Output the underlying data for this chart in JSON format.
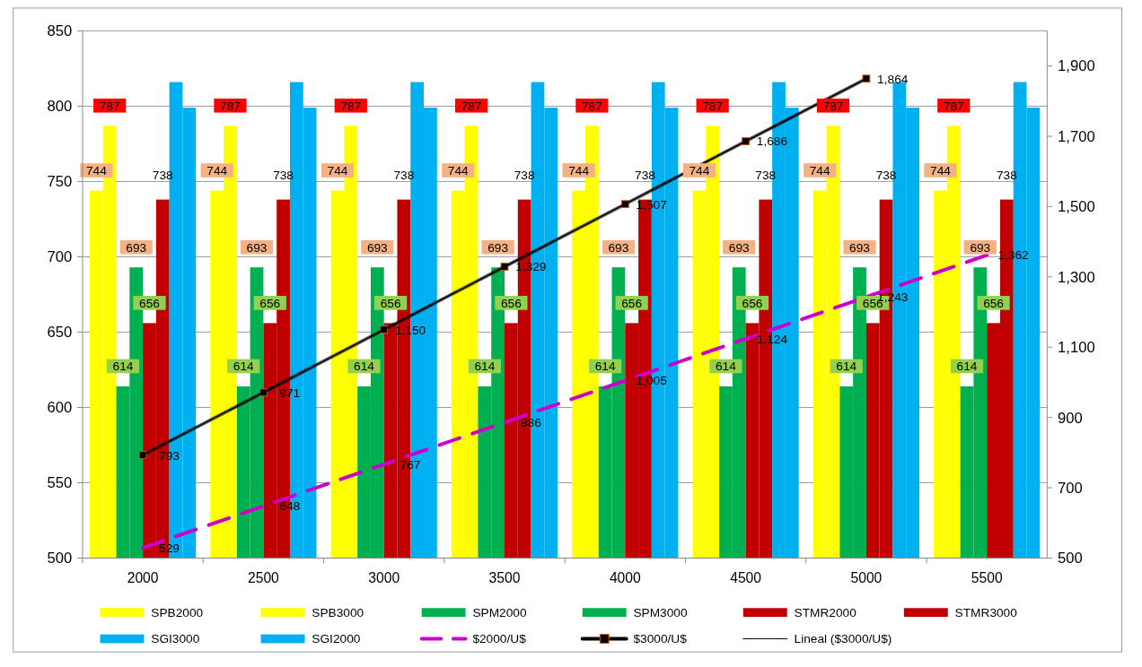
{
  "chart_data": {
    "type": "bar",
    "categories": [
      "2000",
      "2500",
      "3000",
      "3500",
      "4000",
      "4500",
      "5000",
      "5500"
    ],
    "ylim": [
      500,
      850
    ],
    "yticks": [
      500,
      550,
      600,
      650,
      700,
      750,
      800,
      850
    ],
    "y2lim": [
      500,
      2000
    ],
    "y2ticks": [
      {
        "value": 500,
        "label": "500"
      },
      {
        "value": 700,
        "label": "700"
      },
      {
        "value": 900,
        "label": "900"
      },
      {
        "value": 1100,
        "label": "1,100"
      },
      {
        "value": 1300,
        "label": "1,300"
      },
      {
        "value": 1500,
        "label": "1,500"
      },
      {
        "value": 1700,
        "label": "1,700"
      },
      {
        "value": 1900,
        "label": "1,900"
      }
    ],
    "grid": "y",
    "legend": "bottom",
    "series": [
      {
        "name": "SPB2000",
        "color": "#ffff00",
        "values": [
          744,
          744,
          744,
          744,
          744,
          744,
          744,
          744
        ],
        "value_labels": [
          "744",
          "744",
          "744",
          "744",
          "744",
          "744",
          "744",
          "744"
        ]
      },
      {
        "name": "SPB3000",
        "color": "#ffff00",
        "values": [
          787,
          787,
          787,
          787,
          787,
          787,
          787,
          787
        ],
        "value_labels": [
          "787",
          "787",
          "787",
          "787",
          "787",
          "787",
          "787",
          "787"
        ]
      },
      {
        "name": "SPM2000",
        "color": "#00b050",
        "values": [
          614,
          614,
          614,
          614,
          614,
          614,
          614,
          614
        ],
        "value_labels": [
          "614",
          "614",
          "614",
          "614",
          "614",
          "614",
          "614",
          "614"
        ]
      },
      {
        "name": "SPM3000",
        "color": "#00b050",
        "values": [
          693,
          693,
          693,
          693,
          693,
          693,
          693,
          693
        ],
        "value_labels": [
          "693",
          "693",
          "693",
          "693",
          "693",
          "693",
          "693",
          "693"
        ]
      },
      {
        "name": "STMR2000",
        "color": "#c00000",
        "values": [
          656,
          656,
          656,
          656,
          656,
          656,
          656,
          656
        ],
        "value_labels": [
          "656",
          "656",
          "656",
          "656",
          "656",
          "656",
          "656",
          "656"
        ]
      },
      {
        "name": "STMR3000",
        "color": "#c00000",
        "values": [
          738,
          738,
          738,
          738,
          738,
          738,
          738,
          738
        ],
        "value_labels": [
          "738",
          "738",
          "738",
          "738",
          "738",
          "738",
          "738",
          "738"
        ]
      },
      {
        "name": "SGI3000",
        "color": "#00b0f0",
        "values": [
          816,
          816,
          816,
          816,
          816,
          816,
          816,
          816
        ]
      },
      {
        "name": "SGI2000",
        "color": "#00b0f0",
        "values": [
          799,
          799,
          799,
          799,
          799,
          799,
          799,
          799
        ]
      },
      {
        "name": "$2000/U$",
        "type": "line",
        "axis": "y2",
        "color": "#cc00cc",
        "line_style": "dashed",
        "marker": "none",
        "values": [
          529,
          648,
          767,
          886,
          1005,
          1124,
          1243,
          1362
        ],
        "value_labels": [
          "529",
          "648",
          "767",
          "886",
          "1,005",
          "1,124",
          "1,243",
          "1,362"
        ]
      },
      {
        "name": "$3000/U$",
        "type": "line",
        "axis": "y2",
        "color": "#000000",
        "line_style": "solid",
        "marker": "square",
        "values": [
          793,
          971,
          1150,
          1329,
          1507,
          1686,
          1864,
          null
        ],
        "value_labels": [
          "793",
          "971",
          "1,150",
          "1,329",
          "1,507",
          "1,686",
          "1,864",
          null
        ]
      },
      {
        "name": "Lineal ($3000/U$)",
        "type": "line",
        "axis": "y2",
        "color": "#000000",
        "line_style": "solid",
        "marker": "none",
        "values": [
          793,
          971,
          1150,
          1329,
          1507,
          1686,
          1864,
          null
        ]
      }
    ]
  }
}
